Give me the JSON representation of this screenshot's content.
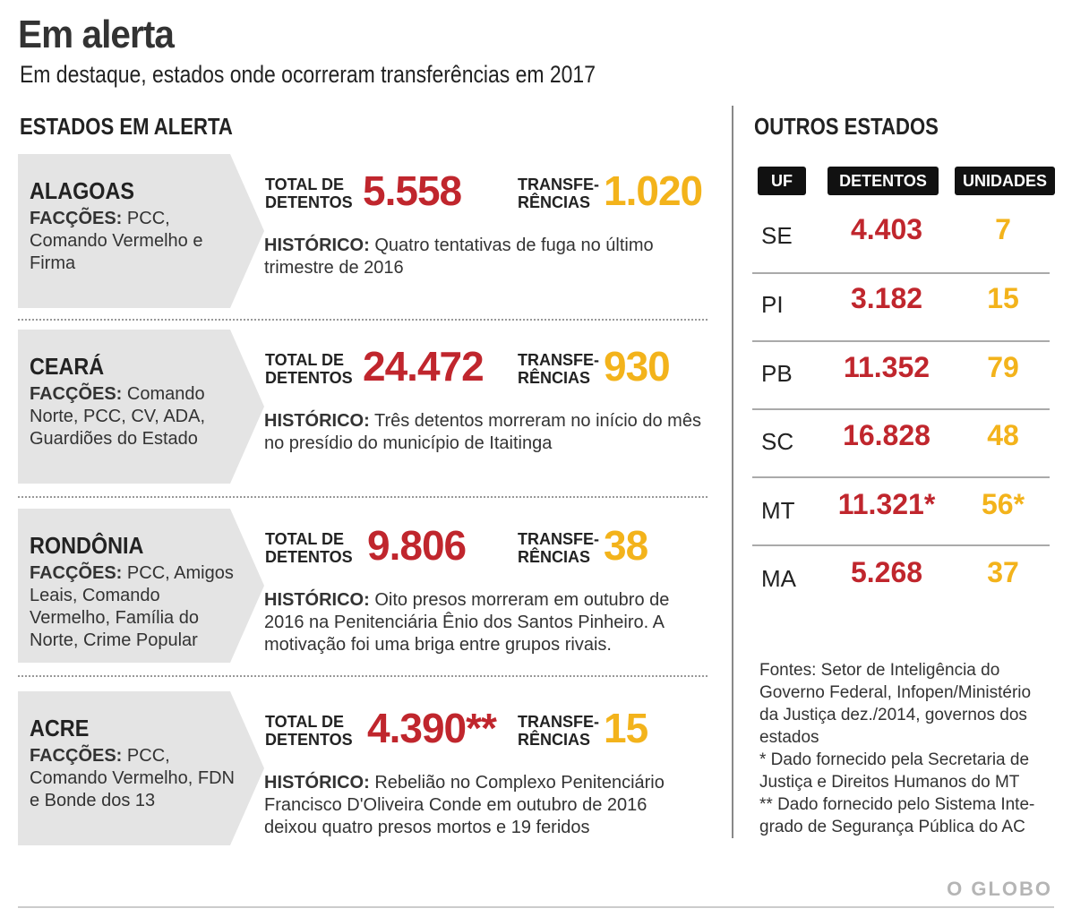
{
  "title": "Em alerta",
  "subtitle": "Em destaque, estados onde ocorreram transferências em 2017",
  "left_heading": "ESTADOS EM ALERTA",
  "right_heading": "OUTROS ESTADOS",
  "labels": {
    "total": "TOTAL DE\nDETENTOS",
    "transf": "TRANSFE-\nRÊNCIAS",
    "faccoes": "FACÇÕES:",
    "historico": "HISTÓRICO:"
  },
  "states": [
    {
      "name": "ALAGOAS",
      "faccoes": "PCC, Comando Vermelho e Firma",
      "total": "5.558",
      "transf": "1.020",
      "historico": "Quatro tentativas de fuga no último trimestre de 2016"
    },
    {
      "name": "CEARÁ",
      "faccoes": "Comando Norte, PCC, CV, ADA, Guardiões do Estado",
      "total": "24.472",
      "transf": "930",
      "historico": "Três detentos morreram no início do mês no presídio do município de Itaitinga"
    },
    {
      "name": "RONDÔNIA",
      "faccoes": "PCC, Amigos Leais, Comando Vermelho, Família do Norte, Crime Popular",
      "total": "9.806",
      "transf": "38",
      "historico": "Oito presos morreram em outubro de 2016 na Penitenciária Ênio dos Santos Pinheiro. A motivação foi uma briga entre grupos rivais."
    },
    {
      "name": "ACRE",
      "faccoes": "PCC, Comando Vermelho, FDN e Bonde dos 13",
      "total": "4.390**",
      "transf": "15",
      "historico": "Rebelião no Complexo Penitenciário Francisco D'Oliveira Conde em outubro de 2016 deixou quatro presos mortos e 19 feridos"
    }
  ],
  "table": {
    "headers": [
      "UF",
      "DETENTOS",
      "UNIDADES"
    ],
    "rows": [
      {
        "uf": "SE",
        "detentos": "4.403",
        "unidades": "7"
      },
      {
        "uf": "PI",
        "detentos": "3.182",
        "unidades": "15"
      },
      {
        "uf": "PB",
        "detentos": "11.352",
        "unidades": "79"
      },
      {
        "uf": "SC",
        "detentos": "16.828",
        "unidades": "48"
      },
      {
        "uf": "MT",
        "detentos": "11.321*",
        "unidades": "56*"
      },
      {
        "uf": "MA",
        "detentos": "5.268",
        "unidades": "37"
      }
    ]
  },
  "sources": [
    "Fontes: Setor de Inteligência do",
    "Governo Federal, Infopen/Ministério",
    "da Justiça dez./2014, governos dos",
    "estados",
    "* Dado fornecido pela Secretaria de",
    "Justiça e Direitos Humanos do MT",
    "** Dado fornecido pelo Sistema Inte-",
    "grado de Segurança Pública do AC"
  ],
  "logo": "O GLOBO",
  "colors": {
    "red": "#c0262d",
    "yellow": "#f3b31b"
  }
}
